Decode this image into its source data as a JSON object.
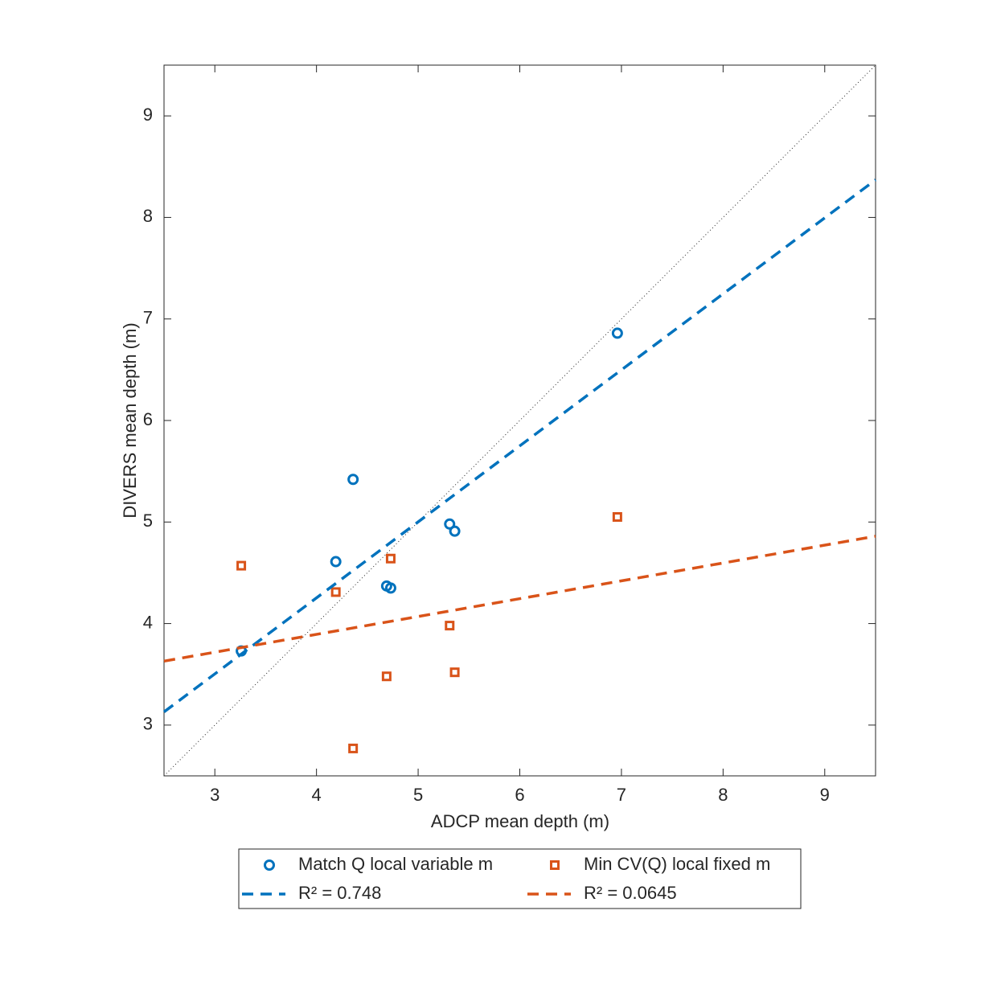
{
  "chart_data": {
    "type": "scatter",
    "xlabel": "ADCP mean depth (m)",
    "ylabel": "DIVERS mean depth (m)",
    "xlim": [
      2.5,
      9.5
    ],
    "ylim": [
      2.5,
      9.5
    ],
    "xticks": [
      3,
      4,
      5,
      6,
      7,
      8,
      9
    ],
    "yticks": [
      3,
      4,
      5,
      6,
      7,
      8,
      9
    ],
    "series": [
      {
        "name": "Match Q local variable m",
        "color": "#0072BD",
        "marker": "circle",
        "x": [
          3.26,
          4.19,
          4.36,
          4.69,
          4.73,
          5.31,
          5.36,
          6.96
        ],
        "values": [
          3.73,
          4.61,
          5.42,
          4.37,
          4.35,
          4.98,
          4.91,
          6.86
        ]
      },
      {
        "name": "Min CV(Q) local fixed m",
        "color": "#D95319",
        "marker": "square",
        "x": [
          3.26,
          4.19,
          4.36,
          4.69,
          4.73,
          5.31,
          5.36,
          6.96
        ],
        "values": [
          4.57,
          4.31,
          2.77,
          3.48,
          4.64,
          3.98,
          3.52,
          5.05
        ]
      },
      {
        "name": "R² = 0.748",
        "color": "#0072BD",
        "line_style": "dashed",
        "x": [
          2.5,
          9.5
        ],
        "values": [
          3.13,
          8.37
        ]
      },
      {
        "name": "R² = 0.0645",
        "color": "#D95319",
        "line_style": "dashed",
        "x": [
          2.5,
          9.5
        ],
        "values": [
          3.63,
          4.86
        ]
      }
    ]
  }
}
